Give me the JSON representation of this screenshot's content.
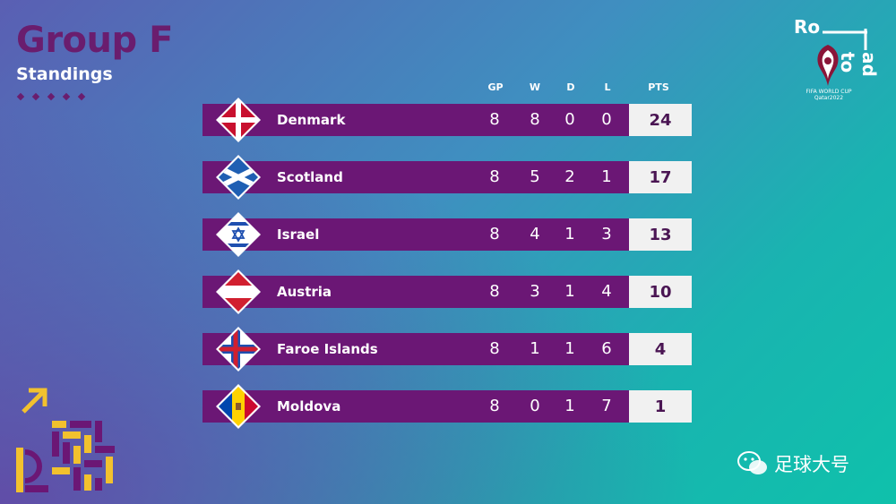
{
  "header": {
    "title": "Group F",
    "subtitle": "Standings"
  },
  "columns": {
    "gp": "GP",
    "w": "W",
    "d": "D",
    "l": "L",
    "pts": "PTS"
  },
  "teams": [
    {
      "name": "Denmark",
      "gp": "8",
      "w": "8",
      "d": "0",
      "l": "0",
      "pts": "24",
      "flag": "denmark-flag-icon"
    },
    {
      "name": "Scotland",
      "gp": "8",
      "w": "5",
      "d": "2",
      "l": "1",
      "pts": "17",
      "flag": "scotland-flag-icon"
    },
    {
      "name": "Israel",
      "gp": "8",
      "w": "4",
      "d": "1",
      "l": "3",
      "pts": "13",
      "flag": "israel-flag-icon"
    },
    {
      "name": "Austria",
      "gp": "8",
      "w": "3",
      "d": "1",
      "l": "4",
      "pts": "10",
      "flag": "austria-flag-icon"
    },
    {
      "name": "Faroe Islands",
      "gp": "8",
      "w": "1",
      "d": "1",
      "l": "6",
      "pts": "4",
      "flag": "faroe-islands-flag-icon"
    },
    {
      "name": "Moldova",
      "gp": "8",
      "w": "0",
      "d": "1",
      "l": "7",
      "pts": "1",
      "flag": "moldova-flag-icon"
    }
  ],
  "branding": {
    "road_ro": "Ro",
    "road_ad_to": "ad to",
    "event_line1": "FIFA WORLD CUP",
    "event_line2": "Qatar2022",
    "watermark": "足球大号"
  },
  "colors": {
    "row": "#6b1775",
    "title": "#6a1d6e",
    "pts_box": "#f1f1f1",
    "accent_yellow": "#f2c12e"
  }
}
